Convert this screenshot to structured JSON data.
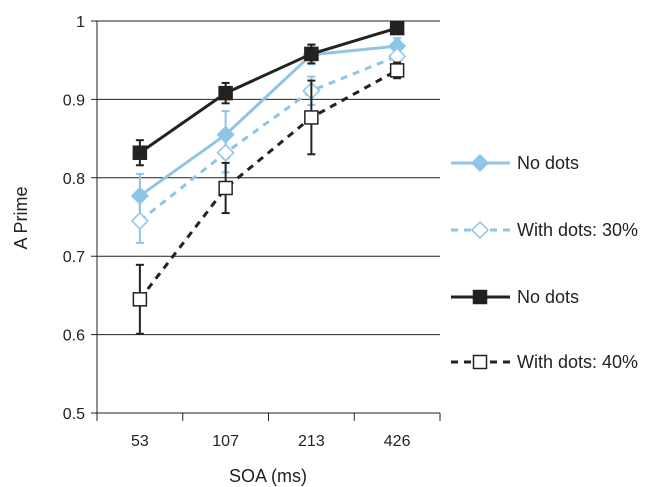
{
  "chart_data": {
    "type": "line",
    "title": "",
    "xlabel": "SOA (ms)",
    "ylabel": "A Prime",
    "categories": [
      "53",
      "107",
      "213",
      "426"
    ],
    "ylim": [
      0.5,
      1.0
    ],
    "yticks": [
      "0.5",
      "0.6",
      "0.7",
      "0.8",
      "0.9",
      "1"
    ],
    "grid": true,
    "legend_position": "right",
    "series": [
      {
        "name": "No dots",
        "color": "#8ec5e6",
        "line_style": "solid",
        "marker": "diamond-filled",
        "values": [
          0.777,
          0.855,
          0.957,
          0.968
        ],
        "errors": [
          0.028,
          0.03,
          0.012,
          0.01
        ]
      },
      {
        "name": "With dots: 30%",
        "color": "#8ec5e6",
        "line_style": "dashed",
        "marker": "diamond-open",
        "values": [
          0.745,
          0.832,
          0.911,
          0.955
        ],
        "errors": [
          0.028,
          0.025,
          0.018,
          0.012
        ]
      },
      {
        "name": "No dots",
        "color": "#222222",
        "line_style": "solid",
        "marker": "square-filled",
        "values": [
          0.832,
          0.908,
          0.958,
          0.991
        ],
        "errors": [
          0.016,
          0.013,
          0.012,
          0.006
        ]
      },
      {
        "name": "With dots: 40%",
        "color": "#222222",
        "line_style": "dashed",
        "marker": "square-open",
        "values": [
          0.645,
          0.787,
          0.877,
          0.937
        ],
        "errors": [
          0.044,
          0.032,
          0.047,
          0.01
        ]
      }
    ]
  }
}
